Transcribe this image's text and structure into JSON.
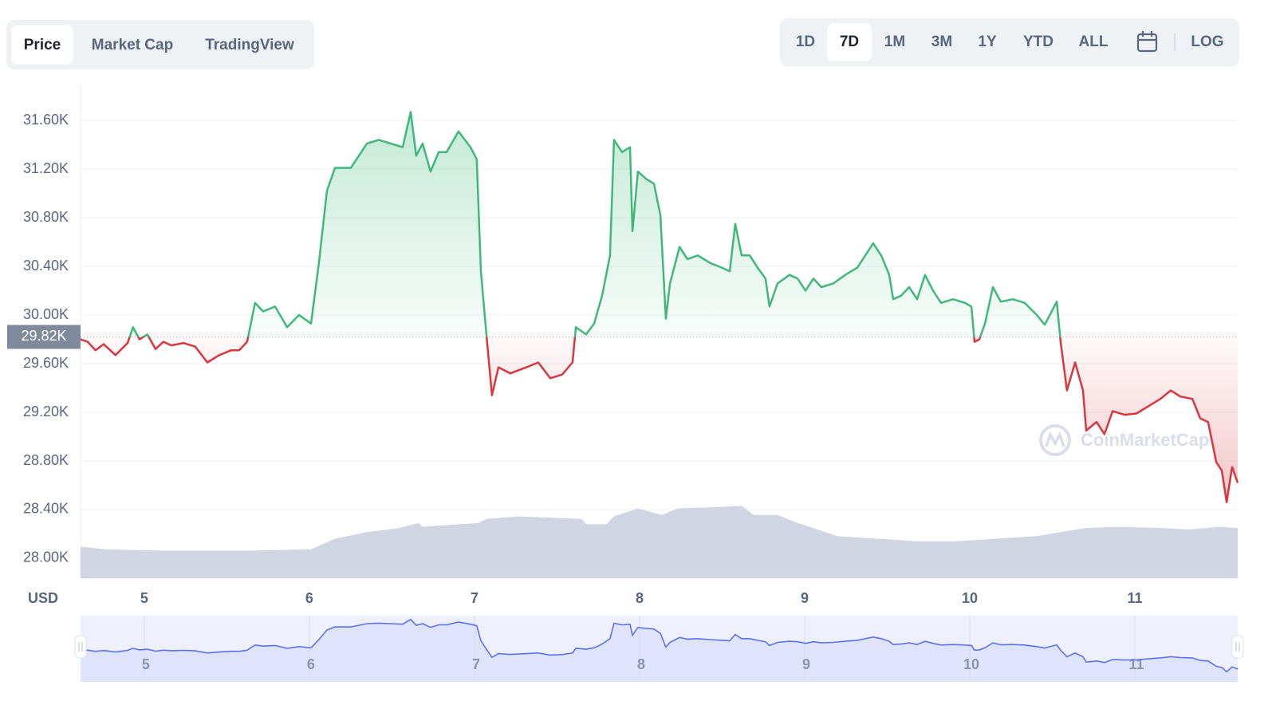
{
  "tabs": {
    "items": [
      "Price",
      "Market Cap",
      "TradingView"
    ],
    "active": 0
  },
  "ranges": {
    "items": [
      "1D",
      "7D",
      "1M",
      "3M",
      "1Y",
      "YTD",
      "ALL"
    ],
    "active": 1
  },
  "scale_toggle": "LOG",
  "chart_data": {
    "type": "line",
    "currency": "USD",
    "watermark": "CoinMarketCap",
    "x": [
      4.614,
      4.657,
      4.705,
      4.754,
      4.826,
      4.899,
      4.932,
      4.971,
      5.019,
      5.068,
      5.116,
      5.164,
      5.237,
      5.309,
      5.382,
      5.454,
      5.527,
      5.575,
      5.623,
      5.671,
      5.72,
      5.792,
      5.865,
      5.937,
      6.01,
      6.058,
      6.106,
      6.155,
      6.251,
      6.3,
      6.348,
      6.42,
      6.493,
      6.565,
      6.614,
      6.647,
      6.686,
      6.734,
      6.783,
      6.831,
      6.903,
      6.976,
      7.014,
      7.039,
      7.072,
      7.106,
      7.145,
      7.217,
      7.314,
      7.386,
      7.459,
      7.531,
      7.594,
      7.614,
      7.676,
      7.725,
      7.773,
      7.821,
      7.845,
      7.894,
      7.942,
      7.957,
      7.99,
      8.039,
      8.087,
      8.126,
      8.159,
      8.184,
      8.242,
      8.29,
      8.353,
      8.425,
      8.498,
      8.546,
      8.58,
      8.618,
      8.667,
      8.715,
      8.763,
      8.787,
      8.836,
      8.908,
      8.957,
      9.005,
      9.053,
      9.101,
      9.174,
      9.246,
      9.319,
      9.367,
      9.415,
      9.464,
      9.512,
      9.536,
      9.585,
      9.633,
      9.681,
      9.729,
      9.778,
      9.826,
      9.899,
      9.971,
      10.01,
      10.029,
      10.058,
      10.092,
      10.14,
      10.188,
      10.261,
      10.333,
      10.406,
      10.454,
      10.527,
      10.551,
      10.589,
      10.638,
      10.686,
      10.705,
      10.768,
      10.816,
      10.865,
      10.937,
      11.01,
      11.082,
      11.155,
      11.217,
      11.275,
      11.348,
      11.396,
      11.444,
      11.493,
      11.527,
      11.556,
      11.589,
      11.623
    ],
    "series": [
      {
        "up_color": "#3fb97a",
        "down_color": "#d9363e",
        "values": [
          29800,
          29780,
          29710,
          29760,
          29670,
          29770,
          29900,
          29800,
          29840,
          29720,
          29780,
          29750,
          29770,
          29740,
          29610,
          29670,
          29710,
          29710,
          29780,
          30100,
          30030,
          30070,
          29900,
          30000,
          29930,
          30430,
          31020,
          31210,
          31210,
          31310,
          31410,
          31440,
          31410,
          31380,
          31670,
          31310,
          31410,
          31180,
          31340,
          31340,
          31510,
          31380,
          31280,
          30360,
          29840,
          29340,
          29570,
          29520,
          29570,
          29610,
          29480,
          29510,
          29610,
          29900,
          29840,
          29930,
          30160,
          30490,
          31440,
          31340,
          31380,
          30690,
          31180,
          31120,
          31080,
          30820,
          29970,
          30260,
          30560,
          30460,
          30490,
          30430,
          30390,
          30360,
          30750,
          30490,
          30490,
          30390,
          30300,
          30070,
          30260,
          30330,
          30300,
          30200,
          30300,
          30230,
          30260,
          30330,
          30390,
          30490,
          30590,
          30490,
          30330,
          30130,
          30160,
          30230,
          30130,
          30330,
          30200,
          30100,
          30130,
          30100,
          30070,
          29780,
          29800,
          29930,
          30230,
          30110,
          30130,
          30100,
          30000,
          29920,
          30110,
          29770,
          29380,
          29610,
          29380,
          29050,
          29120,
          29020,
          29210,
          29180,
          29190,
          29250,
          29310,
          29380,
          29330,
          29310,
          29150,
          29120,
          28790,
          28720,
          28460,
          28750,
          28620
        ]
      }
    ],
    "baseline": {
      "value": 29820,
      "label": "29.82K"
    },
    "xlim": [
      4.614,
      11.623
    ],
    "xticks": [
      5,
      6,
      7,
      8,
      9,
      10,
      11
    ],
    "ylim": [
      27836,
      31902
    ],
    "yticks": [
      {
        "value": 28000,
        "label": "28.00K"
      },
      {
        "value": 28400,
        "label": "28.40K"
      },
      {
        "value": 28800,
        "label": "28.80K"
      },
      {
        "value": 29200,
        "label": "29.20K"
      },
      {
        "value": 29600,
        "label": "29.60K"
      },
      {
        "value": 30000,
        "label": "30.00K"
      },
      {
        "value": 30400,
        "label": "30.40K"
      },
      {
        "value": 30800,
        "label": "30.80K"
      },
      {
        "value": 31200,
        "label": "31.20K"
      },
      {
        "value": 31600,
        "label": "31.60K"
      }
    ],
    "grid": true,
    "volume": {
      "color": "#d1d5e2",
      "x": [
        4.614,
        4.754,
        5.092,
        5.671,
        6.01,
        6.155,
        6.348,
        6.541,
        6.662,
        6.686,
        7.024,
        7.072,
        7.266,
        7.652,
        7.676,
        7.797,
        7.845,
        7.99,
        8.135,
        8.232,
        8.473,
        8.618,
        8.691,
        8.836,
        8.957,
        9.053,
        9.198,
        9.44,
        9.681,
        9.923,
        10.164,
        10.406,
        10.551,
        10.696,
        10.889,
        11.179,
        11.324,
        11.517,
        11.623
      ],
      "values": [
        24,
        22,
        21,
        21,
        22,
        30,
        35,
        38,
        42,
        39,
        42,
        45,
        47,
        45,
        41,
        41,
        47,
        53,
        48,
        53,
        54,
        55,
        48,
        48,
        42,
        38,
        32,
        30,
        28,
        28,
        30,
        32,
        35,
        38,
        39,
        38,
        37,
        39,
        38
      ],
      "vlim": [
        0,
        100
      ]
    },
    "navigator": {
      "line_color": "#5b72ee",
      "fill_color": "#dfe4fc",
      "background": "#eef0fd"
    }
  }
}
